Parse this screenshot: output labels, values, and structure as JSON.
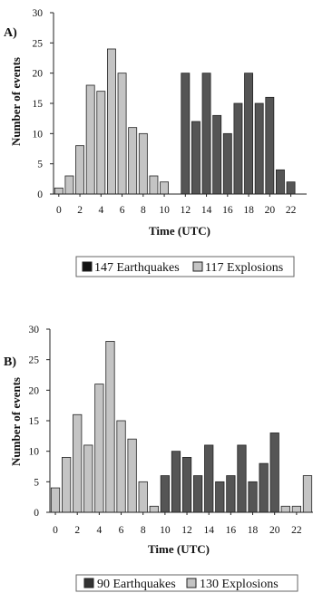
{
  "colors": {
    "earthquake": "#555555",
    "explosion": "#c4c4c4",
    "stroke": "#222222"
  },
  "chart_data": [
    {
      "type": "bar",
      "panel_label": "A)",
      "x": [
        0,
        1,
        2,
        3,
        4,
        5,
        6,
        7,
        8,
        9,
        10,
        11,
        12,
        13,
        14,
        15,
        16,
        17,
        18,
        19,
        20,
        21,
        22,
        23
      ],
      "x_ticks": [
        "0",
        "2",
        "4",
        "6",
        "8",
        "10",
        "12",
        "14",
        "16",
        "18",
        "20",
        "22"
      ],
      "series": [
        {
          "name": "117 Explosions",
          "color_key": "explosion",
          "values": [
            1,
            3,
            8,
            18,
            17,
            24,
            20,
            11,
            10,
            3,
            2,
            0,
            0,
            0,
            0,
            0,
            0,
            0,
            0,
            0,
            0,
            0,
            0,
            0
          ]
        },
        {
          "name": "147 Earthquakes",
          "color_key": "earthquake",
          "values": [
            0,
            0,
            0,
            0,
            0,
            0,
            0,
            0,
            0,
            0,
            0,
            0,
            20,
            12,
            20,
            13,
            10,
            15,
            20,
            15,
            16,
            4,
            2,
            0
          ]
        }
      ],
      "xlabel": "Time (UTC)",
      "ylabel": "Number of events",
      "ylim": [
        0,
        30
      ],
      "y_ticks": [
        "0",
        "5",
        "10",
        "15",
        "20",
        "25",
        "30"
      ],
      "legend": [
        "147 Earthquakes",
        "117 Explosions"
      ],
      "legend_position": "bottom"
    },
    {
      "type": "bar",
      "panel_label": "B)",
      "x": [
        0,
        1,
        2,
        3,
        4,
        5,
        6,
        7,
        8,
        9,
        10,
        11,
        12,
        13,
        14,
        15,
        16,
        17,
        18,
        19,
        20,
        21,
        22,
        23
      ],
      "x_ticks": [
        "0",
        "2",
        "4",
        "6",
        "8",
        "10",
        "12",
        "14",
        "16",
        "18",
        "20",
        "22"
      ],
      "series": [
        {
          "name": "130 Explosions",
          "color_key": "explosion",
          "values": [
            4,
            9,
            16,
            11,
            21,
            28,
            15,
            12,
            5,
            1,
            0,
            0,
            0,
            0,
            0,
            0,
            0,
            0,
            0,
            0,
            0,
            1,
            1,
            6
          ]
        },
        {
          "name": "90 Earthquakes",
          "color_key": "earthquake",
          "values": [
            0,
            0,
            0,
            0,
            0,
            0,
            0,
            0,
            0,
            0,
            6,
            10,
            9,
            6,
            11,
            5,
            6,
            11,
            5,
            8,
            13,
            0,
            0,
            0
          ]
        }
      ],
      "xlabel": "Time (UTC)",
      "ylabel": "Number of events",
      "ylim": [
        0,
        30
      ],
      "y_ticks": [
        "0",
        "5",
        "10",
        "15",
        "20",
        "25",
        "30"
      ],
      "legend": [
        "90 Earthquakes",
        "130 Explosions"
      ],
      "legend_position": "bottom"
    }
  ]
}
